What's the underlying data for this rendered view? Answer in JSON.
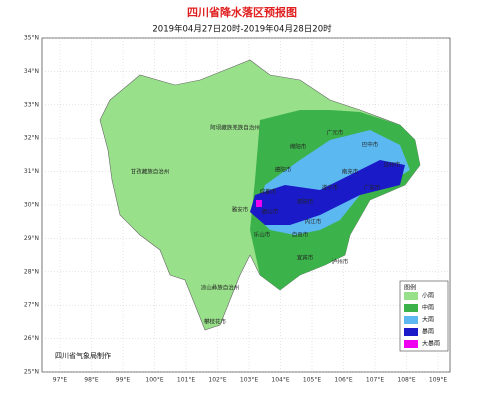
{
  "header": {
    "title": "四川省降水落区预报图",
    "subtitle": "2019年04月27日20时-2019年04月28日20时"
  },
  "map": {
    "lat_labels": [
      "35°N",
      "34°N",
      "33°N",
      "32°N",
      "31°N",
      "30°N",
      "29°N",
      "28°N",
      "27°N",
      "26°N",
      "25°N"
    ],
    "lon_labels": [
      "97°E",
      "98°E",
      "99°E",
      "100°E",
      "101°E",
      "102°E",
      "103°E",
      "104°E",
      "105°E",
      "106°E",
      "107°E",
      "108°E",
      "109°E"
    ],
    "places": [
      "阿坝藏族羌族自治州",
      "甘孜藏族自治州",
      "凉山彝族自治州",
      "攀枝花市",
      "广元市",
      "巴中市",
      "绵阳市",
      "达州市",
      "德阳市",
      "南充市",
      "成都市",
      "遂宁市",
      "广安市",
      "雅安市",
      "资阳市",
      "眉山市",
      "内江市",
      "乐山市",
      "自贡市",
      "宜宾市",
      "泸州市"
    ]
  },
  "legend": {
    "title": "图例",
    "items": [
      "小雨",
      "中雨",
      "大雨",
      "暴雨",
      "大暴雨"
    ]
  },
  "footer": "四川省气象局制作"
}
